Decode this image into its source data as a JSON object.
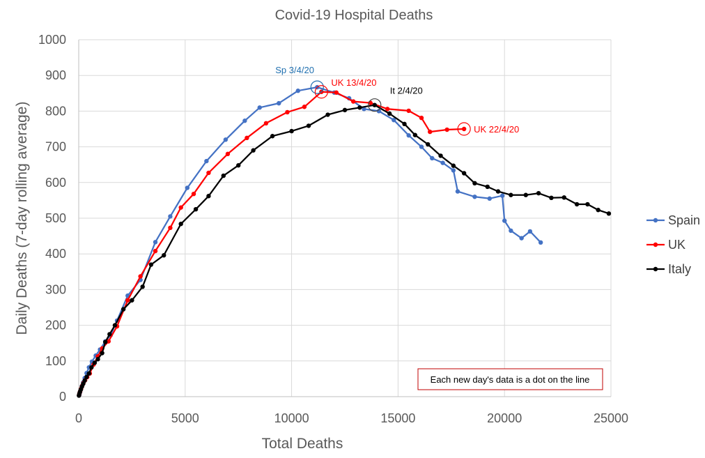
{
  "colors": {
    "spain": "#4472C4",
    "uk": "#FF0000",
    "italy": "#000000",
    "grid": "#D9D9D9",
    "text": "#595959",
    "note_border": "#C00000",
    "annotation_sp": "#1F6FAF",
    "annotation_uk": "#FF0000",
    "annotation_it": "#000000"
  },
  "chart_data": {
    "type": "line",
    "title": "Covid-19 Hospital Deaths",
    "xlabel": "Total Deaths",
    "ylabel": "Daily Deaths (7-day rolling average)",
    "xlim": [
      0,
      25000
    ],
    "ylim": [
      0,
      1000
    ],
    "xticks": [
      0,
      5000,
      10000,
      15000,
      20000,
      25000
    ],
    "xtick_labels": [
      "0",
      "5000",
      "10000",
      "15000",
      "20000",
      "25000"
    ],
    "yticks": [
      0,
      100,
      200,
      300,
      400,
      500,
      600,
      700,
      800,
      900,
      1000
    ],
    "ytick_labels": [
      "0",
      "100",
      "200",
      "300",
      "400",
      "500",
      "600",
      "700",
      "800",
      "900",
      "1000"
    ],
    "grid": true,
    "legend_position": "right",
    "series": [
      {
        "name": "Spain",
        "color_key": "spain",
        "x": [
          30,
          60,
          100,
          150,
          210,
          280,
          370,
          480,
          620,
          800,
          1000,
          1250,
          1500,
          1800,
          2300,
          2900,
          3600,
          4300,
          5100,
          6000,
          6900,
          7800,
          8500,
          9400,
          10300,
          11200,
          12000,
          12700,
          13400,
          14100,
          14800,
          15500,
          16100,
          16600,
          17100,
          17600,
          17800,
          18600,
          19300,
          19900,
          20000,
          20300,
          20800,
          21200,
          21700
        ],
        "y": [
          5,
          12,
          20,
          30,
          40,
          52,
          66,
          82,
          98,
          115,
          132,
          155,
          172,
          213,
          283,
          327,
          433,
          505,
          585,
          660,
          720,
          773,
          810,
          822,
          857,
          867,
          852,
          836,
          806,
          800,
          775,
          732,
          700,
          668,
          655,
          634,
          575,
          560,
          555,
          563,
          493,
          465,
          444,
          463,
          432
        ]
      },
      {
        "name": "UK",
        "color_key": "uk",
        "x": [
          20,
          40,
          70,
          110,
          160,
          220,
          300,
          400,
          520,
          700,
          900,
          1100,
          1400,
          1800,
          2300,
          2900,
          3600,
          4300,
          4800,
          5400,
          6100,
          7000,
          7900,
          8800,
          9800,
          10600,
          11400,
          12100,
          12900,
          13700,
          14500,
          15500,
          16100,
          16500,
          17300,
          18100
        ],
        "y": [
          5,
          10,
          15,
          22,
          30,
          38,
          46,
          55,
          65,
          90,
          113,
          135,
          155,
          197,
          270,
          337,
          408,
          473,
          530,
          568,
          627,
          680,
          725,
          766,
          797,
          812,
          854,
          852,
          827,
          823,
          806,
          801,
          781,
          742,
          748,
          750
        ]
      },
      {
        "name": "Italy",
        "color_key": "italy",
        "x": [
          10,
          30,
          60,
          100,
          150,
          210,
          280,
          370,
          480,
          600,
          750,
          900,
          1100,
          1250,
          1450,
          1700,
          2100,
          2500,
          3000,
          3400,
          4000,
          4800,
          5500,
          6100,
          6800,
          7500,
          8200,
          9100,
          10000,
          10800,
          11700,
          12500,
          13200,
          13900,
          14600,
          15300,
          15800,
          16400,
          17000,
          17600,
          18100,
          18600,
          19200,
          19700,
          20300,
          21000,
          21600,
          22200,
          22800,
          23400,
          23900,
          24400,
          24900
        ],
        "y": [
          3,
          8,
          14,
          20,
          28,
          36,
          45,
          55,
          65,
          82,
          95,
          105,
          122,
          153,
          175,
          200,
          245,
          270,
          308,
          370,
          396,
          484,
          525,
          562,
          619,
          648,
          690,
          730,
          744,
          759,
          790,
          803,
          810,
          817,
          793,
          764,
          733,
          707,
          675,
          647,
          626,
          598,
          588,
          575,
          565,
          565,
          570,
          557,
          558,
          539,
          539,
          523,
          513
        ]
      }
    ],
    "annotations": [
      {
        "text": "Sp 3/4/20",
        "x": 11200,
        "y": 867,
        "color_key": "annotation_sp"
      },
      {
        "text": "UK 13/4/20",
        "x": 11400,
        "y": 854,
        "color_key": "annotation_uk"
      },
      {
        "text": "It 2/4/20",
        "x": 13900,
        "y": 817,
        "color_key": "annotation_it"
      },
      {
        "text": "UK 22/4/20",
        "x": 18100,
        "y": 750,
        "color_key": "annotation_uk"
      }
    ],
    "note": "Each new day's data is a dot on the line"
  }
}
